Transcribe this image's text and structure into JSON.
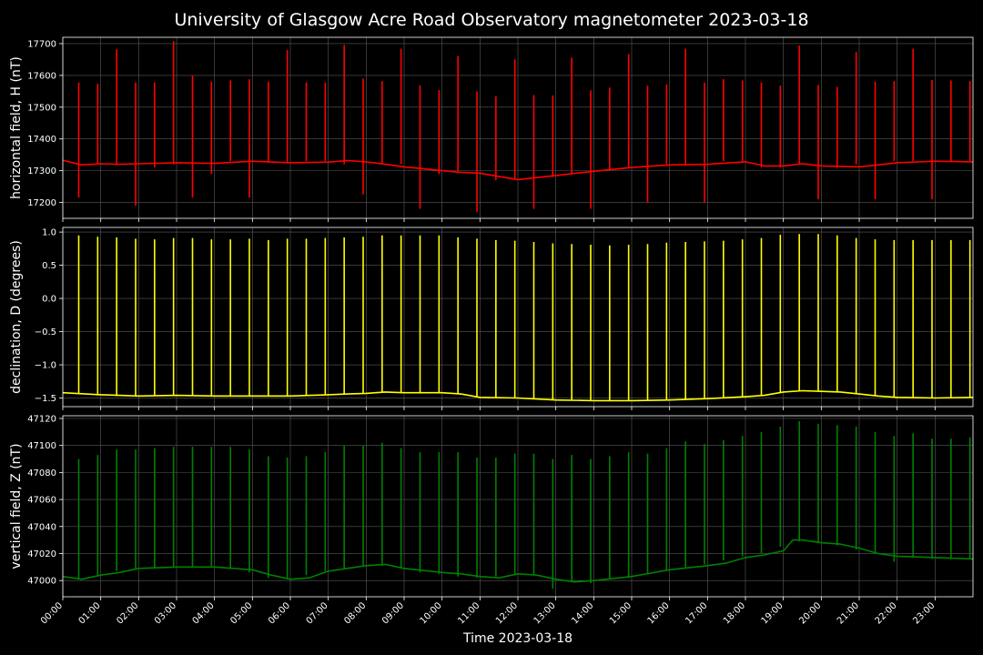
{
  "chart_data": {
    "type": "line",
    "title": "University of Glasgow Acre Road Observatory magnetometer 2023-03-18",
    "xlabel": "Time 2023-03-18",
    "x_ticks": [
      "00:00",
      "01:00",
      "02:00",
      "03:00",
      "04:00",
      "05:00",
      "06:00",
      "07:00",
      "08:00",
      "09:00",
      "10:00",
      "11:00",
      "12:00",
      "13:00",
      "14:00",
      "15:00",
      "16:00",
      "17:00",
      "18:00",
      "19:00",
      "20:00",
      "21:00",
      "22:00",
      "23:00"
    ],
    "xlim_hours": [
      0,
      24
    ],
    "grid": true,
    "panels": [
      {
        "ylabel": "horizontal field, H (nT)",
        "color": "#ff0000",
        "ylim": [
          17150,
          17720
        ],
        "yticks": [
          17200,
          17300,
          17400,
          17500,
          17600,
          17700
        ],
        "ytick_labels": [
          "17200",
          "17300",
          "17400",
          "17500",
          "17600",
          "17700"
        ],
        "baseline": {
          "hours": [
            0,
            0.5,
            1,
            1.5,
            2,
            3,
            4,
            5,
            6,
            7,
            7.5,
            8,
            8.5,
            9,
            10,
            10.5,
            11,
            12,
            13,
            14,
            15,
            16,
            17,
            18,
            18.5,
            19,
            19.5,
            20,
            21,
            22,
            23,
            24
          ],
          "values": [
            17333,
            17318,
            17322,
            17320,
            17322,
            17325,
            17323,
            17330,
            17325,
            17327,
            17332,
            17328,
            17320,
            17312,
            17300,
            17295,
            17292,
            17272,
            17285,
            17298,
            17310,
            17318,
            17320,
            17328,
            17315,
            17315,
            17322,
            17315,
            17312,
            17325,
            17330,
            17328
          ]
        },
        "spikes": {
          "hours": [
            0.42,
            0.92,
            1.42,
            1.92,
            2.42,
            2.92,
            3.42,
            3.92,
            4.42,
            4.92,
            5.42,
            5.92,
            6.42,
            6.92,
            7.42,
            7.92,
            8.42,
            8.92,
            9.42,
            9.92,
            10.42,
            10.92,
            11.42,
            11.92,
            12.42,
            12.92,
            13.42,
            13.92,
            14.42,
            14.92,
            15.42,
            15.92,
            16.42,
            16.92,
            17.42,
            17.92,
            18.42,
            18.92,
            19.42,
            19.92,
            20.42,
            20.92,
            21.42,
            21.92,
            22.42,
            22.92,
            23.42,
            23.92
          ],
          "max": [
            17578,
            17574,
            17682,
            17578,
            17578,
            17708,
            17600,
            17580,
            17584,
            17588,
            17580,
            17680,
            17578,
            17578,
            17696,
            17590,
            17582,
            17684,
            17569,
            17554,
            17661,
            17550,
            17534,
            17651,
            17538,
            17537,
            17656,
            17553,
            17562,
            17667,
            17568,
            17572,
            17684,
            17578,
            17588,
            17584,
            17578,
            17568,
            17694,
            17570,
            17564,
            17674,
            17580,
            17582,
            17684,
            17585,
            17584,
            17582
          ],
          "min": [
            17215,
            17320,
            17320,
            17190,
            17310,
            17320,
            17215,
            17290,
            17330,
            17215,
            17325,
            17325,
            17330,
            17330,
            17320,
            17225,
            17320,
            17320,
            17180,
            17290,
            17300,
            17170,
            17270,
            17275,
            17180,
            17280,
            17290,
            17180,
            17300,
            17310,
            17200,
            17320,
            17320,
            17200,
            17330,
            17330,
            17310,
            17310,
            17320,
            17210,
            17310,
            17320,
            17210,
            17330,
            17330,
            17210,
            17330,
            17330
          ]
        }
      },
      {
        "ylabel": "declination, D (degrees)",
        "color": "#ffff00",
        "ylim": [
          -1.63,
          1.07
        ],
        "yticks": [
          -1.5,
          -1.0,
          -0.5,
          0.0,
          0.5,
          1.0
        ],
        "ytick_labels": [
          "−1.5",
          "−1.0",
          "−0.5",
          "0.0",
          "0.5",
          "1.0"
        ],
        "baseline": {
          "hours": [
            0,
            1,
            2,
            3,
            4,
            5,
            6,
            7,
            7.5,
            8,
            8.5,
            9,
            10,
            10.5,
            11,
            12,
            13,
            14,
            15,
            16,
            17,
            18,
            18.5,
            19,
            19.5,
            20,
            20.5,
            21,
            21.5,
            22,
            23,
            24
          ],
          "values": [
            -1.42,
            -1.45,
            -1.47,
            -1.46,
            -1.47,
            -1.47,
            -1.47,
            -1.45,
            -1.44,
            -1.43,
            -1.41,
            -1.42,
            -1.42,
            -1.44,
            -1.49,
            -1.5,
            -1.53,
            -1.54,
            -1.54,
            -1.53,
            -1.51,
            -1.48,
            -1.46,
            -1.41,
            -1.39,
            -1.4,
            -1.41,
            -1.44,
            -1.47,
            -1.49,
            -1.5,
            -1.49
          ]
        },
        "spikes": {
          "hours": [
            0.42,
            0.92,
            1.42,
            1.92,
            2.42,
            2.92,
            3.42,
            3.92,
            4.42,
            4.92,
            5.42,
            5.92,
            6.42,
            6.92,
            7.42,
            7.92,
            8.42,
            8.92,
            9.42,
            9.92,
            10.42,
            10.92,
            11.42,
            11.92,
            12.42,
            12.92,
            13.42,
            13.92,
            14.42,
            14.92,
            15.42,
            15.92,
            16.42,
            16.92,
            17.42,
            17.92,
            18.42,
            18.92,
            19.42,
            19.92,
            20.42,
            20.92,
            21.42,
            21.92,
            22.42,
            22.92,
            23.42,
            23.92
          ],
          "max": [
            0.95,
            0.93,
            0.92,
            0.9,
            0.89,
            0.91,
            0.91,
            0.89,
            0.89,
            0.9,
            0.88,
            0.9,
            0.9,
            0.91,
            0.92,
            0.93,
            0.95,
            0.95,
            0.95,
            0.95,
            0.92,
            0.9,
            0.88,
            0.87,
            0.85,
            0.83,
            0.82,
            0.81,
            0.8,
            0.81,
            0.82,
            0.84,
            0.85,
            0.86,
            0.87,
            0.89,
            0.91,
            0.96,
            0.97,
            0.97,
            0.95,
            0.91,
            0.89,
            0.88,
            0.88,
            0.88,
            0.88,
            0.88
          ],
          "min": [
            -1.43,
            -1.46,
            -1.47,
            -1.47,
            -1.47,
            -1.47,
            -1.47,
            -1.48,
            -1.48,
            -1.48,
            -1.48,
            -1.48,
            -1.47,
            -1.46,
            -1.45,
            -1.43,
            -1.42,
            -1.42,
            -1.42,
            -1.42,
            -1.44,
            -1.49,
            -1.5,
            -1.5,
            -1.52,
            -1.53,
            -1.54,
            -1.54,
            -1.54,
            -1.54,
            -1.53,
            -1.53,
            -1.52,
            -1.51,
            -1.5,
            -1.48,
            -1.46,
            -1.41,
            -1.39,
            -1.4,
            -1.41,
            -1.44,
            -1.47,
            -1.49,
            -1.49,
            -1.5,
            -1.5,
            -1.49
          ]
        }
      },
      {
        "ylabel": "vertical field, Z (nT)",
        "color": "#008000",
        "ylim": [
          46988,
          47122
        ],
        "yticks": [
          47000,
          47020,
          47040,
          47060,
          47080,
          47100,
          47120
        ],
        "ytick_labels": [
          "47000",
          "47020",
          "47040",
          "47060",
          "47080",
          "47100",
          "47120"
        ],
        "baseline": {
          "hours": [
            0,
            0.5,
            1,
            1.5,
            2,
            3,
            4,
            5,
            5.5,
            6,
            6.5,
            7,
            7.5,
            8,
            8.5,
            9,
            10,
            10.5,
            11,
            11.5,
            12,
            12.5,
            13,
            13.5,
            14,
            15,
            16,
            17,
            17.5,
            18,
            18.5,
            19,
            19.25,
            19.5,
            20,
            20.5,
            21,
            21.5,
            22,
            23,
            24
          ],
          "values": [
            47003,
            47001,
            47004,
            47006,
            47009,
            47010,
            47010,
            47008,
            47004,
            47001,
            47002,
            47007,
            47009,
            47011,
            47012,
            47009,
            47006,
            47005,
            47003,
            47002,
            47005,
            47004,
            47001,
            46999,
            47000,
            47003,
            47008,
            47011,
            47013,
            47017,
            47019,
            47022,
            47030,
            47030,
            47028,
            47027,
            47024,
            47020,
            47018,
            47017,
            47016
          ]
        },
        "spikes": {
          "hours": [
            0.42,
            0.92,
            1.42,
            1.92,
            2.42,
            2.92,
            3.42,
            3.92,
            4.42,
            4.92,
            5.42,
            5.92,
            6.42,
            6.92,
            7.42,
            7.92,
            8.42,
            8.92,
            9.42,
            9.92,
            10.42,
            10.92,
            11.42,
            11.92,
            12.42,
            12.92,
            13.42,
            13.92,
            14.42,
            14.92,
            15.42,
            15.92,
            16.42,
            16.92,
            17.42,
            17.92,
            18.42,
            18.92,
            19.42,
            19.92,
            20.42,
            20.92,
            21.42,
            21.92,
            22.42,
            22.92,
            23.42,
            23.92
          ],
          "max": [
            47090,
            47093,
            47097,
            47097,
            47098,
            47099,
            47099,
            47099,
            47099,
            47097,
            47092,
            47091,
            47092,
            47095,
            47100,
            47100,
            47102,
            47098,
            47095,
            47095,
            47095,
            47091,
            47091,
            47094,
            47094,
            47090,
            47093,
            47090,
            47092,
            47095,
            47094,
            47098,
            47103,
            47101,
            47104,
            47107,
            47110,
            47114,
            47118,
            47116,
            47115,
            47114,
            47110,
            47107,
            47109,
            47105,
            47105,
            47106
          ],
          "min": [
            47001,
            47004,
            47007,
            47008,
            47009,
            47010,
            47010,
            47010,
            47009,
            47006,
            47002,
            47001,
            47004,
            47007,
            47009,
            47011,
            47011,
            47009,
            47006,
            47005,
            47003,
            47002,
            47003,
            47005,
            47004,
            46994,
            46999,
            46998,
            47001,
            47002,
            47005,
            47008,
            47010,
            47012,
            47015,
            47018,
            47020,
            47025,
            47029,
            47028,
            47026,
            47023,
            47020,
            47014,
            47017,
            47016,
            47016,
            47016
          ]
        }
      }
    ]
  }
}
